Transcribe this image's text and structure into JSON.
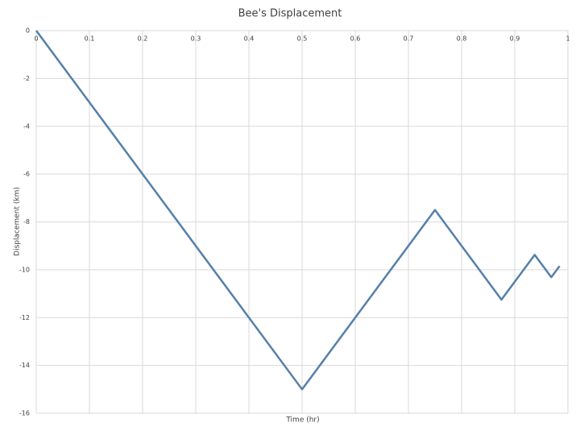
{
  "chart_data": {
    "type": "line",
    "title": "Bee's Displacement",
    "x_label": "Time (hr)",
    "y_label": "Displacement (km)",
    "x": [
      0,
      0.5,
      0.75,
      0.875,
      0.9375,
      0.96875,
      0.984375
    ],
    "values": [
      0,
      -15,
      -7.5,
      -11.25,
      -9.375,
      -10.3125,
      -9.84375
    ],
    "color": "#5580aa",
    "xlim": [
      0,
      1
    ],
    "xticks": [
      0,
      0.1,
      0.2,
      0.3,
      0.4,
      0.5,
      0.6,
      0.7,
      0.8,
      0.9,
      1
    ],
    "ylim": [
      -16,
      0
    ],
    "yticks": [
      0,
      -2,
      -4,
      -6,
      -8,
      -10,
      -12,
      -14,
      -16
    ],
    "grid": true
  }
}
